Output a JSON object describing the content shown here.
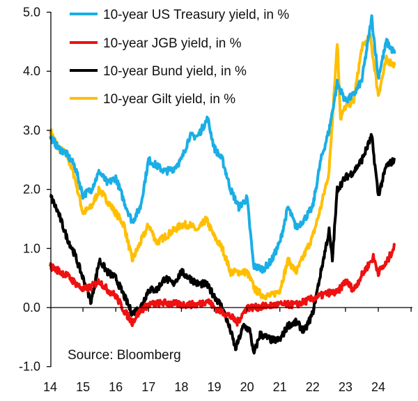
{
  "chart_data": {
    "type": "line",
    "title": "",
    "xlabel": "",
    "ylabel": "",
    "xlim": [
      2014,
      2025
    ],
    "ylim": [
      -1.0,
      5.0
    ],
    "x_ticks": [
      "14",
      "15",
      "16",
      "17",
      "18",
      "19",
      "20",
      "21",
      "22",
      "23",
      "24"
    ],
    "y_ticks": [
      "-1.0",
      "0.0",
      "1.0",
      "2.0",
      "3.0",
      "4.0",
      "5.0"
    ],
    "y_tick_values": [
      -1,
      0,
      1,
      2,
      3,
      4,
      5
    ],
    "legend_position": "top-left",
    "annotation": "Source: Bloomberg",
    "series": [
      {
        "name": "10-year US Treasury yield, in %",
        "color": "#1aaee5",
        "x": [
          2014.0,
          2014.25,
          2014.5,
          2014.75,
          2015.0,
          2015.25,
          2015.5,
          2015.75,
          2016.0,
          2016.25,
          2016.5,
          2016.75,
          2017.0,
          2017.25,
          2017.5,
          2017.75,
          2018.0,
          2018.25,
          2018.5,
          2018.8,
          2019.0,
          2019.25,
          2019.5,
          2019.75,
          2020.0,
          2020.2,
          2020.5,
          2020.75,
          2021.0,
          2021.25,
          2021.5,
          2021.75,
          2022.0,
          2022.25,
          2022.5,
          2022.75,
          2023.0,
          2023.25,
          2023.5,
          2023.8,
          2024.0,
          2024.25,
          2024.5
        ],
        "y": [
          2.9,
          2.7,
          2.6,
          2.4,
          1.9,
          2.0,
          2.3,
          2.1,
          2.2,
          1.8,
          1.45,
          1.7,
          2.5,
          2.4,
          2.3,
          2.35,
          2.5,
          2.9,
          2.9,
          3.2,
          2.7,
          2.5,
          2.0,
          1.7,
          1.85,
          0.7,
          0.65,
          0.8,
          1.1,
          1.7,
          1.35,
          1.5,
          1.7,
          2.5,
          3.0,
          3.8,
          3.5,
          3.6,
          3.85,
          4.9,
          3.9,
          4.5,
          4.3
        ]
      },
      {
        "name": "10-year JGB yield, in %",
        "color": "#ee1111",
        "x": [
          2014.0,
          2014.5,
          2015.0,
          2015.25,
          2015.5,
          2015.75,
          2016.0,
          2016.25,
          2016.5,
          2016.75,
          2017.0,
          2017.5,
          2018.0,
          2018.5,
          2018.8,
          2019.0,
          2019.5,
          2019.7,
          2020.0,
          2020.25,
          2020.5,
          2021.0,
          2021.5,
          2022.0,
          2022.5,
          2022.75,
          2023.0,
          2023.25,
          2023.5,
          2023.85,
          2024.0,
          2024.25,
          2024.5
        ],
        "y": [
          0.7,
          0.55,
          0.3,
          0.35,
          0.45,
          0.3,
          0.2,
          -0.05,
          -0.25,
          -0.05,
          0.05,
          0.08,
          0.05,
          0.05,
          0.12,
          0.0,
          -0.15,
          -0.25,
          0.0,
          0.0,
          0.02,
          0.05,
          0.05,
          0.15,
          0.25,
          0.25,
          0.45,
          0.3,
          0.55,
          0.85,
          0.6,
          0.75,
          1.05
        ]
      },
      {
        "name": "10-year Bund yield, in %",
        "color": "#000000",
        "x": [
          2014.0,
          2014.25,
          2014.5,
          2014.75,
          2015.0,
          2015.25,
          2015.5,
          2015.75,
          2016.0,
          2016.25,
          2016.5,
          2016.75,
          2017.0,
          2017.25,
          2017.5,
          2017.75,
          2018.0,
          2018.25,
          2018.5,
          2018.75,
          2019.0,
          2019.25,
          2019.5,
          2019.65,
          2019.9,
          2020.1,
          2020.2,
          2020.4,
          2020.75,
          2021.0,
          2021.25,
          2021.5,
          2021.75,
          2022.0,
          2022.25,
          2022.5,
          2022.6,
          2022.75,
          2023.0,
          2023.25,
          2023.5,
          2023.8,
          2024.0,
          2024.25,
          2024.5
        ],
        "y": [
          1.9,
          1.6,
          1.2,
          0.9,
          0.5,
          0.1,
          0.8,
          0.6,
          0.5,
          0.2,
          -0.1,
          0.0,
          0.3,
          0.3,
          0.5,
          0.4,
          0.6,
          0.5,
          0.4,
          0.4,
          0.2,
          0.0,
          -0.4,
          -0.7,
          -0.3,
          -0.4,
          -0.8,
          -0.45,
          -0.55,
          -0.55,
          -0.3,
          -0.25,
          -0.4,
          -0.1,
          0.6,
          1.3,
          0.8,
          2.0,
          2.2,
          2.3,
          2.5,
          2.9,
          1.9,
          2.4,
          2.5
        ]
      },
      {
        "name": "10-year Gilt yield, in %",
        "color": "#ffbf00",
        "x": [
          2014.0,
          2014.25,
          2014.5,
          2014.75,
          2015.0,
          2015.25,
          2015.5,
          2015.75,
          2016.0,
          2016.25,
          2016.5,
          2016.75,
          2017.0,
          2017.25,
          2017.5,
          2017.75,
          2018.0,
          2018.25,
          2018.5,
          2018.75,
          2019.0,
          2019.25,
          2019.5,
          2019.75,
          2020.0,
          2020.25,
          2020.5,
          2020.75,
          2021.0,
          2021.25,
          2021.5,
          2021.75,
          2022.0,
          2022.25,
          2022.5,
          2022.75,
          2022.85,
          2023.0,
          2023.25,
          2023.5,
          2023.75,
          2024.0,
          2024.25,
          2024.5
        ],
        "y": [
          3.0,
          2.7,
          2.6,
          2.2,
          1.6,
          1.7,
          2.0,
          1.8,
          1.6,
          1.4,
          0.8,
          1.1,
          1.4,
          1.1,
          1.2,
          1.3,
          1.4,
          1.4,
          1.3,
          1.5,
          1.2,
          1.0,
          0.6,
          0.6,
          0.6,
          0.3,
          0.2,
          0.2,
          0.3,
          0.8,
          0.6,
          0.9,
          1.2,
          1.7,
          2.3,
          4.5,
          3.2,
          3.4,
          3.5,
          4.4,
          4.6,
          3.6,
          4.2,
          4.1
        ]
      }
    ]
  }
}
